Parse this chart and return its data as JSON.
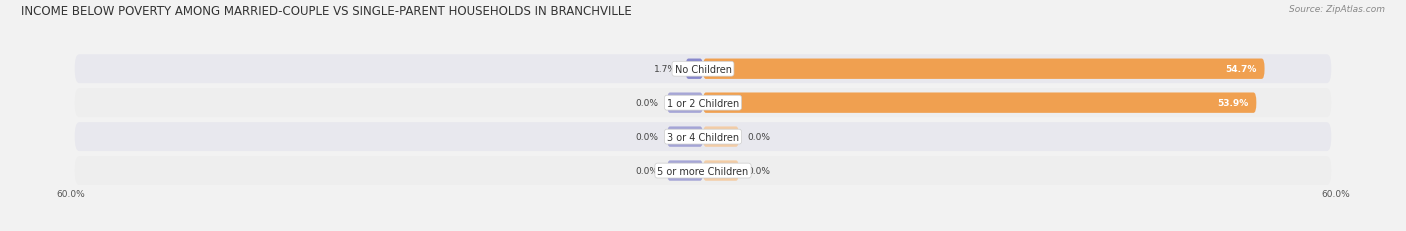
{
  "title": "INCOME BELOW POVERTY AMONG MARRIED-COUPLE VS SINGLE-PARENT HOUSEHOLDS IN BRANCHVILLE",
  "source": "Source: ZipAtlas.com",
  "categories": [
    "No Children",
    "1 or 2 Children",
    "3 or 4 Children",
    "5 or more Children"
  ],
  "married_values": [
    1.7,
    0.0,
    0.0,
    0.0
  ],
  "single_values": [
    54.7,
    53.9,
    0.0,
    0.0
  ],
  "married_color": "#8888cc",
  "single_color": "#f0a050",
  "single_color_light": "#f5c89a",
  "max_val": 60.0,
  "axis_label": "60.0%",
  "bg_color": "#f2f2f2",
  "row_colors": [
    "#e8e8ee",
    "#eeeeee"
  ],
  "title_fontsize": 8.5,
  "cat_label_fontsize": 7.0,
  "bar_label_fontsize": 6.5,
  "legend_fontsize": 7.0,
  "source_fontsize": 6.5
}
